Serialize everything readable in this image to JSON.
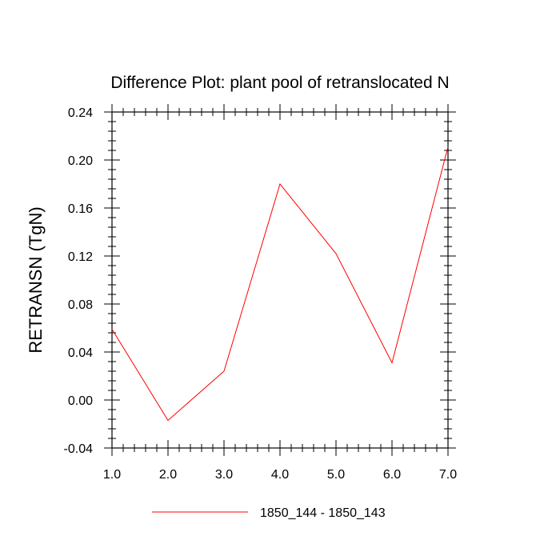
{
  "chart_data": {
    "type": "line",
    "title": "Difference Plot: plant pool of retranslocated N",
    "xlabel": "",
    "ylabel": "RETRANSN  (TgN)",
    "xlim": [
      1.0,
      7.0
    ],
    "ylim": [
      -0.04,
      0.24
    ],
    "x_ticks": [
      "1.0",
      "2.0",
      "3.0",
      "4.0",
      "5.0",
      "6.0",
      "7.0"
    ],
    "y_ticks": [
      "-0.04",
      "0.00",
      "0.04",
      "0.08",
      "0.12",
      "0.16",
      "0.20",
      "0.24"
    ],
    "grid": false,
    "legend_position": "bottom",
    "series": [
      {
        "name": "1850_144 - 1850_143",
        "color": "#ff0000",
        "x": [
          1.0,
          2.0,
          3.0,
          4.0,
          5.0,
          6.0,
          7.0
        ],
        "y": [
          0.059,
          -0.017,
          0.024,
          0.18,
          0.122,
          0.031,
          0.211
        ]
      }
    ]
  }
}
